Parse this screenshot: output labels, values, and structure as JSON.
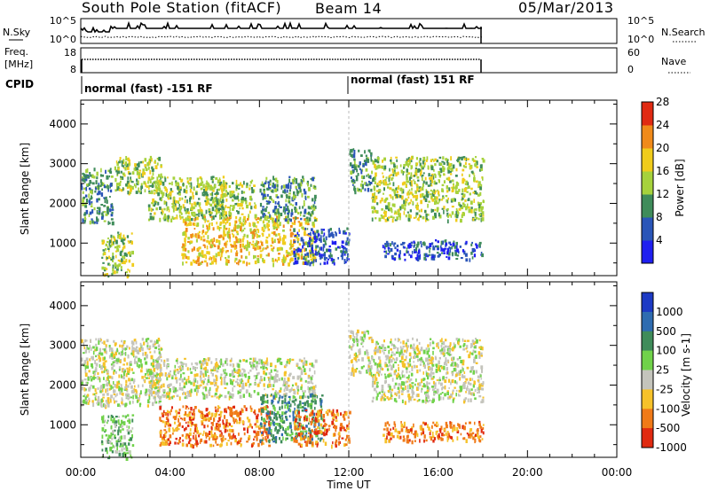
{
  "header": {
    "station": "South Pole Station (fitACF)",
    "beam": "Beam 14",
    "date": "05/Mar/2013"
  },
  "nsky_panel": {
    "left_label": "N.Sky",
    "right_label": "N.Search",
    "left_ticks": [
      "10^5",
      "10^0"
    ],
    "right_ticks": [
      "10^5",
      "10^0"
    ]
  },
  "freq_panel": {
    "left_label_line1": "Freq.",
    "left_label_line2": "[MHz]",
    "right_label": "Nave",
    "left_ticks": [
      "18",
      "8"
    ],
    "right_ticks": [
      "60",
      "0"
    ]
  },
  "cpid": {
    "label": "CPID",
    "segments": [
      {
        "text": "normal (fast) -151 RF",
        "start_hour": 0
      },
      {
        "text": "normal (fast) 151 RF",
        "start_hour": 12
      }
    ]
  },
  "chart_data": [
    {
      "type": "heatmap",
      "ylabel": "Slant Range [km]",
      "colorbar_label": "Power [dB]",
      "colorbar_ticks": [
        "4",
        "8",
        "12",
        "16",
        "20",
        "24",
        "28"
      ],
      "colors": [
        "#1f1ff0",
        "#2a55b8",
        "#3f8c5a",
        "#a6d23c",
        "#f0cc1c",
        "#f08a1a",
        "#e02a12"
      ],
      "xlim_hours": [
        0,
        24
      ],
      "ylim_km": [
        180,
        4600
      ],
      "ytick_values": [
        1000,
        2000,
        3000,
        4000
      ],
      "ytick_labels": [
        "1000",
        "2000",
        "3000",
        "4000"
      ],
      "data_end_hour": 18,
      "echo_regions": [
        {
          "t0": 0.0,
          "t1": 1.4,
          "r0": 1500,
          "r1": 2900,
          "level": 2
        },
        {
          "t0": 0.9,
          "t1": 2.3,
          "r0": 180,
          "r1": 1300,
          "level": 3
        },
        {
          "t0": 1.5,
          "t1": 3.6,
          "r0": 2300,
          "r1": 3200,
          "level": 3
        },
        {
          "t0": 3.0,
          "t1": 6.5,
          "r0": 1600,
          "r1": 2700,
          "level": 3
        },
        {
          "t0": 4.5,
          "t1": 10.5,
          "r0": 500,
          "r1": 1700,
          "level": 4
        },
        {
          "t0": 5.5,
          "t1": 7.8,
          "r0": 1700,
          "r1": 2600,
          "level": 3
        },
        {
          "t0": 8.0,
          "t1": 10.5,
          "r0": 1600,
          "r1": 2700,
          "level": 2
        },
        {
          "t0": 9.5,
          "t1": 12.0,
          "r0": 500,
          "r1": 1400,
          "level": 1
        },
        {
          "t0": 12.0,
          "t1": 13.0,
          "r0": 2300,
          "r1": 3400,
          "level": 2
        },
        {
          "t0": 13.0,
          "t1": 18.0,
          "r0": 1600,
          "r1": 3200,
          "level": 3
        },
        {
          "t0": 13.5,
          "t1": 18.0,
          "r0": 600,
          "r1": 1100,
          "level": 1
        }
      ]
    },
    {
      "type": "heatmap",
      "ylabel": "Slant Range [km]",
      "colorbar_label": "Velocity [m s-1]",
      "colorbar_ticks": [
        "1000",
        "500",
        "100",
        "25",
        "-25",
        "-100",
        "-500",
        "-1000"
      ],
      "colors": [
        "#1d3ac4",
        "#2f6cb0",
        "#3f8c5a",
        "#70d24a",
        "#c4c4bc",
        "#f6c22a",
        "#f07a18",
        "#e02a10"
      ],
      "xlim_hours": [
        0,
        24
      ],
      "ylim_km": [
        180,
        4600
      ],
      "ytick_values": [
        1000,
        2000,
        3000,
        4000
      ],
      "ytick_labels": [
        "1000",
        "2000",
        "3000",
        "4000"
      ],
      "data_end_hour": 18,
      "echo_regions": [
        {
          "t0": 0.0,
          "t1": 3.6,
          "r0": 1500,
          "r1": 3200,
          "level": 4
        },
        {
          "t0": 0.9,
          "t1": 2.3,
          "r0": 180,
          "r1": 1300,
          "level": 3
        },
        {
          "t0": 3.0,
          "t1": 10.5,
          "r0": 1700,
          "r1": 2700,
          "level": 4
        },
        {
          "t0": 3.5,
          "t1": 8.5,
          "r0": 500,
          "r1": 1500,
          "level": 6
        },
        {
          "t0": 8.0,
          "t1": 10.8,
          "r0": 600,
          "r1": 1800,
          "level": 2
        },
        {
          "t0": 9.5,
          "t1": 12.0,
          "r0": 500,
          "r1": 1400,
          "level": 6
        },
        {
          "t0": 12.0,
          "t1": 13.0,
          "r0": 2300,
          "r1": 3400,
          "level": 4
        },
        {
          "t0": 13.0,
          "t1": 18.0,
          "r0": 1600,
          "r1": 3200,
          "level": 4
        },
        {
          "t0": 13.5,
          "t1": 18.0,
          "r0": 600,
          "r1": 1100,
          "level": 6
        }
      ]
    }
  ],
  "xaxis": {
    "label": "Time UT",
    "tick_values": [
      0,
      4,
      8,
      12,
      16,
      20,
      24
    ],
    "tick_labels": [
      "00:00",
      "04:00",
      "08:00",
      "12:00",
      "16:00",
      "20:00",
      "00:00"
    ]
  }
}
